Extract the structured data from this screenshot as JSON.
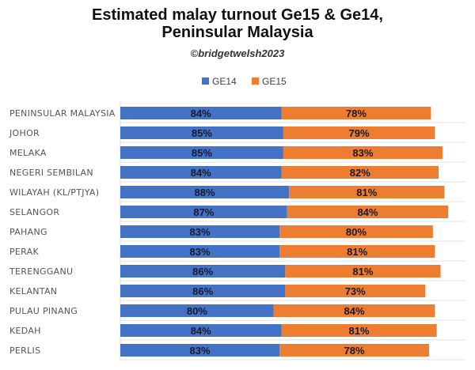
{
  "chart_data": {
    "type": "bar",
    "orientation": "horizontal",
    "stacked": true,
    "title_line1": "Estimated malay turnout Ge15 & Ge14,",
    "title_line2": "Peninsular Malaysia",
    "subtitle": "©bridgetwelsh2023",
    "legend_position": "top",
    "categories": [
      "PENINSULAR MALAYSIA",
      "JOHOR",
      "MELAKA",
      "NEGERI SEMBILAN",
      "WILAYAH (KL/PTJYA)",
      "SELANGOR",
      "PAHANG",
      "PERAK",
      "TERENGGANU",
      "KELANTAN",
      "PULAU PINANG",
      "KEDAH",
      "PERLIS"
    ],
    "series": [
      {
        "name": "GE14",
        "color": "#4472C4",
        "values": [
          84,
          85,
          85,
          84,
          88,
          87,
          83,
          83,
          86,
          86,
          80,
          84,
          83
        ]
      },
      {
        "name": "GE15",
        "color": "#ED7D31",
        "values": [
          78,
          79,
          83,
          82,
          81,
          84,
          80,
          81,
          81,
          73,
          84,
          81,
          78
        ]
      }
    ],
    "xlim": [
      0,
      180
    ],
    "grid": true,
    "value_suffix": "%"
  }
}
